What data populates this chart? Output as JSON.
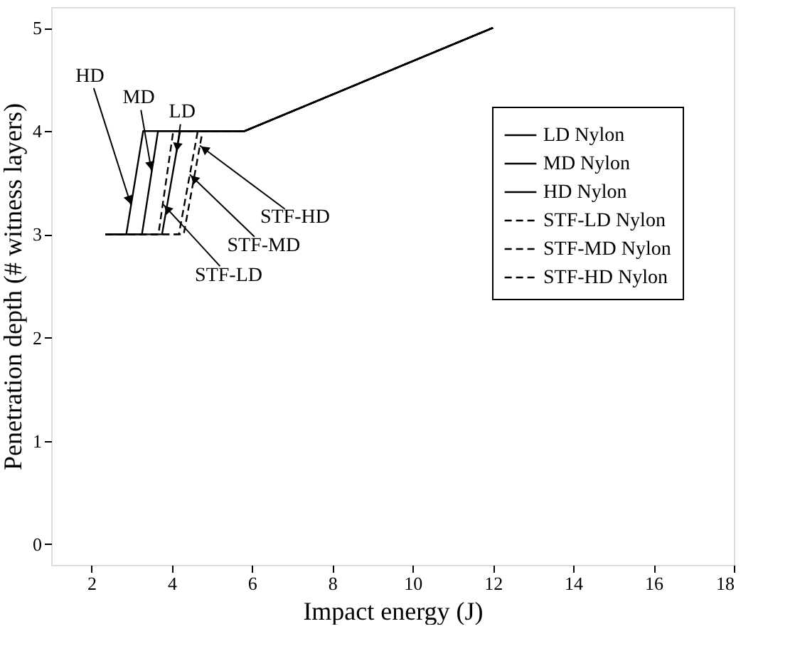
{
  "chart_data": {
    "type": "line",
    "xlabel": "Impact energy (J)",
    "ylabel": "Penetration depth (# witness layers)",
    "xlim": [
      1,
      18
    ],
    "xticks": [
      2,
      4,
      6,
      8,
      10,
      12,
      14,
      16,
      18
    ],
    "ylim": [
      -0.2,
      5.2
    ],
    "yticks": [
      0,
      1,
      2,
      3,
      4,
      5
    ],
    "grid": false,
    "legend": "top right",
    "marker": "none",
    "series": [
      {
        "name": "LD Nylon",
        "color": "#000000",
        "line_style": "solid",
        "x": [
          2.35,
          3.76,
          4.21,
          5.82,
          12.0
        ],
        "values": [
          3,
          3,
          4,
          4,
          5
        ]
      },
      {
        "name": "MD Nylon",
        "color": "#000000",
        "line_style": "solid",
        "x": [
          2.35,
          3.26,
          3.66,
          5.82,
          12.0
        ],
        "values": [
          3,
          3,
          4,
          4,
          5
        ]
      },
      {
        "name": "HD Nylon",
        "color": "#000000",
        "line_style": "solid",
        "x": [
          2.35,
          2.87,
          3.29,
          5.82,
          12.0
        ],
        "values": [
          3,
          3,
          4,
          4,
          5
        ]
      },
      {
        "name": "STF-LD Nylon",
        "color": "#000000",
        "line_style": "dashed",
        "x": [
          2.35,
          3.67,
          4.04,
          5.82,
          12.0
        ],
        "values": [
          3,
          3,
          4,
          4,
          5
        ]
      },
      {
        "name": "STF-MD Nylon",
        "color": "#000000",
        "line_style": "dashed",
        "x": [
          2.35,
          4.18,
          4.65,
          5.82,
          12.0
        ],
        "values": [
          3,
          3,
          4,
          4,
          5
        ]
      },
      {
        "name": "STF-HD Nylon",
        "color": "#000000",
        "line_style": "dashed",
        "x": [
          2.35,
          4.3,
          4.77,
          5.82,
          12.0
        ],
        "values": [
          3,
          3,
          4,
          4,
          5
        ]
      }
    ],
    "annotations": [
      {
        "text": "HD",
        "x": 2.99,
        "y": 3.28
      },
      {
        "text": "MD",
        "x": 3.5,
        "y": 3.61
      },
      {
        "text": "LD",
        "x": 4.12,
        "y": 3.79
      },
      {
        "text": "STF-HD",
        "x": 4.7,
        "y": 3.86
      },
      {
        "text": "STF-MD",
        "x": 4.45,
        "y": 3.58
      },
      {
        "text": "STF-LD",
        "x": 3.79,
        "y": 3.29
      }
    ]
  }
}
